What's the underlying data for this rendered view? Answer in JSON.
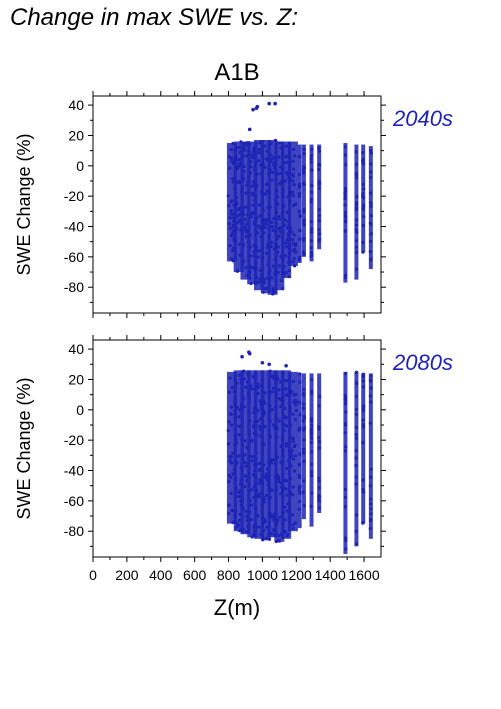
{
  "page": {
    "title": "Change in max SWE vs. Z:"
  },
  "figure": {
    "scenario_label": "A1B",
    "shared_xlabel": "Z(m)"
  },
  "chart_data": [
    {
      "type": "scatter",
      "panel_label": "2040s",
      "scenario": "A1B",
      "title": "",
      "xlabel": "",
      "ylabel": "SWE Change (%)",
      "xlim": [
        0,
        1700
      ],
      "ylim": [
        -97,
        46
      ],
      "x_ticks": [
        0,
        200,
        400,
        600,
        800,
        1000,
        1200,
        1400,
        1600
      ],
      "y_ticks": [
        -80,
        -60,
        -40,
        -20,
        0,
        20,
        40
      ],
      "x_tick_labels_shown": false,
      "grid": false,
      "color": "#1d23b4",
      "column_stripes": [
        {
          "x": 820,
          "ymin": -63,
          "ymax": 15
        },
        {
          "x": 860,
          "ymin": -70,
          "ymax": 16
        },
        {
          "x": 900,
          "ymin": -75,
          "ymax": 16
        },
        {
          "x": 940,
          "ymin": -78,
          "ymax": 16
        },
        {
          "x": 980,
          "ymin": -82,
          "ymax": 17
        },
        {
          "x": 1020,
          "ymin": -84,
          "ymax": 17
        },
        {
          "x": 1060,
          "ymin": -85,
          "ymax": 17
        },
        {
          "x": 1100,
          "ymin": -82,
          "ymax": 16
        },
        {
          "x": 1140,
          "ymin": -74,
          "ymax": 16
        },
        {
          "x": 1180,
          "ymin": -66,
          "ymax": 16
        },
        {
          "x": 1220,
          "ymin": -64,
          "ymax": 14
        },
        {
          "x": 1245,
          "ymin": -60,
          "ymax": 14
        },
        {
          "x": 1290,
          "ymin": -63,
          "ymax": 14
        },
        {
          "x": 1335,
          "ymin": -55,
          "ymax": 14
        },
        {
          "x": 1490,
          "ymin": -77,
          "ymax": 15
        },
        {
          "x": 1555,
          "ymin": -75,
          "ymax": 14
        },
        {
          "x": 1595,
          "ymin": -57,
          "ymax": 14
        },
        {
          "x": 1640,
          "ymin": -68,
          "ymax": 13
        }
      ],
      "outliers": [
        {
          "x": 945,
          "y": 37
        },
        {
          "x": 965,
          "y": 38
        },
        {
          "x": 970,
          "y": 39
        },
        {
          "x": 1040,
          "y": 41
        },
        {
          "x": 1075,
          "y": 41
        },
        {
          "x": 925,
          "y": 24
        }
      ]
    },
    {
      "type": "scatter",
      "panel_label": "2080s",
      "scenario": "A1B",
      "title": "",
      "xlabel": "Z(m)",
      "ylabel": "SWE Change (%)",
      "xlim": [
        0,
        1700
      ],
      "ylim": [
        -97,
        46
      ],
      "x_ticks": [
        0,
        200,
        400,
        600,
        800,
        1000,
        1200,
        1400,
        1600
      ],
      "y_ticks": [
        -80,
        -60,
        -40,
        -20,
        0,
        20,
        40
      ],
      "x_tick_labels": [
        "0",
        "200",
        "400",
        "600",
        "800",
        "1000",
        "1200",
        "1400",
        "1600"
      ],
      "x_tick_labels_shown": true,
      "grid": false,
      "color": "#1d23b4",
      "column_stripes": [
        {
          "x": 820,
          "ymin": -75,
          "ymax": 25
        },
        {
          "x": 860,
          "ymin": -80,
          "ymax": 26
        },
        {
          "x": 900,
          "ymin": -82,
          "ymax": 26
        },
        {
          "x": 940,
          "ymin": -84,
          "ymax": 26
        },
        {
          "x": 980,
          "ymin": -85,
          "ymax": 26
        },
        {
          "x": 1020,
          "ymin": -86,
          "ymax": 26
        },
        {
          "x": 1060,
          "ymin": -84,
          "ymax": 26
        },
        {
          "x": 1100,
          "ymin": -87,
          "ymax": 26
        },
        {
          "x": 1140,
          "ymin": -85,
          "ymax": 26
        },
        {
          "x": 1180,
          "ymin": -80,
          "ymax": 25
        },
        {
          "x": 1220,
          "ymin": -78,
          "ymax": 24
        },
        {
          "x": 1245,
          "ymin": -72,
          "ymax": 24
        },
        {
          "x": 1290,
          "ymin": -77,
          "ymax": 24
        },
        {
          "x": 1335,
          "ymin": -68,
          "ymax": 24
        },
        {
          "x": 1490,
          "ymin": -95,
          "ymax": 25
        },
        {
          "x": 1555,
          "ymin": -90,
          "ymax": 25
        },
        {
          "x": 1595,
          "ymin": -75,
          "ymax": 24
        },
        {
          "x": 1640,
          "ymin": -85,
          "ymax": 24
        }
      ],
      "outliers": [
        {
          "x": 920,
          "y": 38
        },
        {
          "x": 925,
          "y": 37
        },
        {
          "x": 880,
          "y": 35
        },
        {
          "x": 1000,
          "y": 31
        },
        {
          "x": 1040,
          "y": 30
        },
        {
          "x": 1140,
          "y": 29
        }
      ]
    }
  ]
}
